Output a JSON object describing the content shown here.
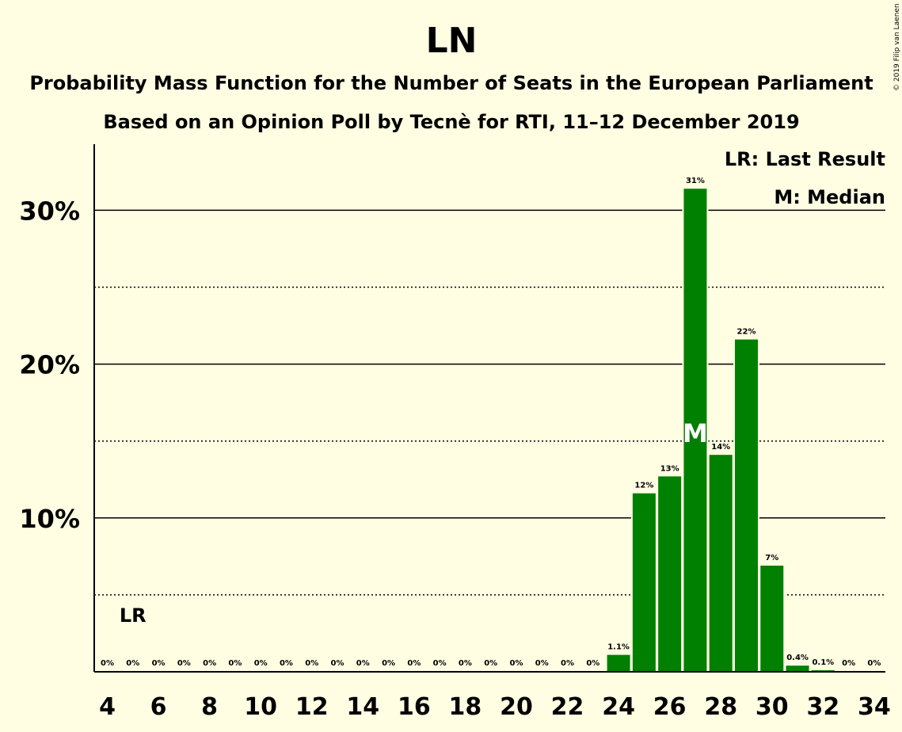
{
  "chart_data": {
    "type": "bar",
    "title": "LN",
    "subtitle_1": "Probability Mass Function for the Number of Seats in the European Parliament",
    "subtitle_2": "Based on an Opinion Poll by Tecnè for RTI, 11–12 December 2019",
    "copyright": "© 2019 Filip van Laenen",
    "legend_lr": "LR: Last Result",
    "legend_m": "M: Median",
    "lr_marker": "LR",
    "median_marker": "M",
    "last_result_seat": 5,
    "median_seat": 27,
    "x": [
      4,
      5,
      6,
      7,
      8,
      9,
      10,
      11,
      12,
      13,
      14,
      15,
      16,
      17,
      18,
      19,
      20,
      21,
      22,
      23,
      24,
      25,
      26,
      27,
      28,
      29,
      30,
      31,
      32,
      33,
      34
    ],
    "values": [
      0,
      0,
      0,
      0,
      0,
      0,
      0,
      0,
      0,
      0,
      0,
      0,
      0,
      0,
      0,
      0,
      0,
      0,
      0,
      0,
      1.1,
      11.6,
      12.7,
      31.4,
      14.1,
      21.6,
      6.9,
      0.4,
      0.1,
      0,
      0
    ],
    "value_labels": [
      "0%",
      "0%",
      "0%",
      "0%",
      "0%",
      "0%",
      "0%",
      "0%",
      "0%",
      "0%",
      "0%",
      "0%",
      "0%",
      "0%",
      "0%",
      "0%",
      "0%",
      "0%",
      "0%",
      "0%",
      "1.1%",
      "12%",
      "13%",
      "31%",
      "14%",
      "22%",
      "7%",
      "0.4%",
      "0.1%",
      "0%",
      "0%"
    ],
    "x_tick_labels": [
      "4",
      "6",
      "8",
      "10",
      "12",
      "14",
      "16",
      "18",
      "20",
      "22",
      "24",
      "26",
      "28",
      "30",
      "32",
      "34"
    ],
    "y_ticks": [
      10,
      20,
      30
    ],
    "y_tick_labels": [
      "10%",
      "20%",
      "30%"
    ],
    "y_minor_ticks": [
      5,
      15,
      25
    ],
    "ylim": [
      0,
      34
    ],
    "bar_color": "#008000",
    "background_color": "#FFFEE3"
  }
}
